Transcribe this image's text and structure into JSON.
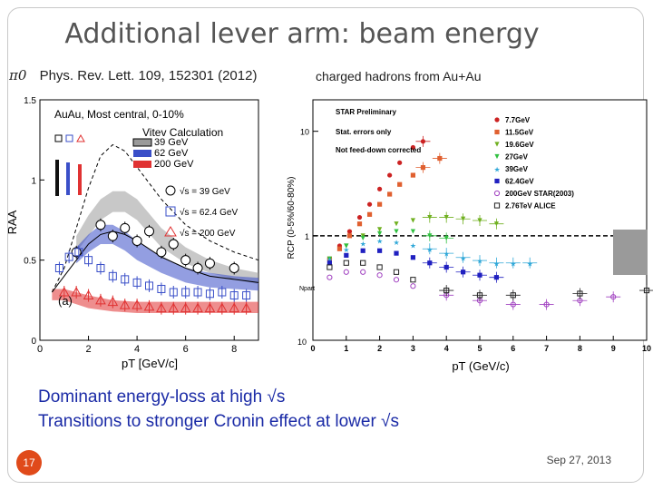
{
  "slide": {
    "title": "Additional lever arm: beam energy",
    "pi_label": "π0",
    "publication": "Phys. Rev. Lett. 109, 152301 (2012)",
    "hadrons_label": "charged hadrons from Au+Au",
    "bullets": [
      "Dominant energy-loss at high √s",
      "Transitions to stronger Cronin effect at lower √s"
    ],
    "slide_number": "17",
    "date": "Sep 27, 2013"
  },
  "colors": {
    "c39": "#9a9a9a",
    "c62": "#3a4fc8",
    "c200": "#e03232",
    "g77": "#cc2222",
    "g115": "#e06030",
    "g196": "#70b020",
    "g27": "#30c040",
    "g39": "#30a8d8",
    "g624": "#2020c0",
    "g200": "#a040c0",
    "g276": "#202020"
  },
  "chart_data": [
    {
      "type": "scatter",
      "title": "AuAu, Most central, 0-10%",
      "calc_label": "Vitev Calculation",
      "panel_label": "(a)",
      "xlabel": "pT [GeV/c]",
      "ylabel": "RAA",
      "xlim": [
        0,
        9
      ],
      "ylim": [
        0,
        1.5
      ],
      "x_ticks": [
        "0",
        "2",
        "4",
        "6",
        "8"
      ],
      "y_ticks": [
        "0",
        "0.5",
        "1",
        "1.5"
      ],
      "bands": [
        {
          "name": "39 GeV",
          "x": [
            1.5,
            2,
            2.5,
            3,
            3.5,
            4,
            5,
            6,
            7,
            8,
            9
          ],
          "lo": [
            0.55,
            0.65,
            0.75,
            0.8,
            0.8,
            0.75,
            0.58,
            0.48,
            0.42,
            0.38,
            0.35
          ],
          "hi": [
            0.65,
            0.78,
            0.88,
            0.93,
            0.93,
            0.88,
            0.7,
            0.58,
            0.5,
            0.45,
            0.42
          ]
        },
        {
          "name": "62 GeV",
          "x": [
            1.5,
            2,
            2.5,
            3,
            3.5,
            4,
            5,
            6,
            7,
            8,
            9
          ],
          "lo": [
            0.48,
            0.55,
            0.6,
            0.6,
            0.56,
            0.5,
            0.42,
            0.36,
            0.33,
            0.32,
            0.31
          ],
          "hi": [
            0.58,
            0.66,
            0.72,
            0.72,
            0.68,
            0.62,
            0.52,
            0.45,
            0.42,
            0.4,
            0.39
          ]
        },
        {
          "name": "200 GeV",
          "x": [
            0.5,
            1,
            2,
            3,
            4,
            5,
            6,
            7,
            8,
            9
          ],
          "lo": [
            0.25,
            0.25,
            0.2,
            0.18,
            0.17,
            0.17,
            0.17,
            0.17,
            0.17,
            0.17
          ],
          "hi": [
            0.32,
            0.32,
            0.28,
            0.25,
            0.24,
            0.24,
            0.24,
            0.24,
            0.24,
            0.24
          ]
        }
      ],
      "curves": [
        {
          "name": "dashed",
          "x": [
            0.5,
            1,
            1.5,
            2,
            2.5,
            3,
            3.5,
            4,
            5,
            6,
            7,
            8,
            9
          ],
          "y": [
            0.3,
            0.45,
            0.7,
            0.95,
            1.15,
            1.22,
            1.18,
            1.08,
            0.88,
            0.72,
            0.62,
            0.55,
            0.5
          ]
        },
        {
          "name": "solid",
          "x": [
            0.5,
            1,
            1.5,
            2,
            2.5,
            3,
            3.5,
            4,
            5,
            6,
            7,
            8,
            9
          ],
          "y": [
            0.3,
            0.4,
            0.5,
            0.6,
            0.66,
            0.68,
            0.66,
            0.62,
            0.52,
            0.45,
            0.4,
            0.38,
            0.36
          ]
        }
      ],
      "series": [
        {
          "name": "√s = 39 GeV",
          "x": [
            1.5,
            2.5,
            3,
            3.5,
            4,
            4.5,
            5,
            5.5,
            6,
            6.5,
            7,
            8
          ],
          "y": [
            0.55,
            0.72,
            0.65,
            0.7,
            0.62,
            0.68,
            0.55,
            0.6,
            0.5,
            0.45,
            0.48,
            0.45
          ]
        },
        {
          "name": "√s = 62.4 GeV",
          "x": [
            0.8,
            1.2,
            1.6,
            2,
            2.5,
            3,
            3.5,
            4,
            4.5,
            5,
            5.5,
            6,
            6.5,
            7,
            7.5,
            8,
            8.5
          ],
          "y": [
            0.45,
            0.52,
            0.55,
            0.5,
            0.45,
            0.4,
            0.38,
            0.36,
            0.34,
            0.32,
            0.3,
            0.3,
            0.3,
            0.29,
            0.3,
            0.28,
            0.28
          ]
        },
        {
          "name": "√s = 200 GeV",
          "x": [
            1,
            1.5,
            2,
            2.5,
            3,
            3.5,
            4,
            4.5,
            5,
            5.5,
            6,
            6.5,
            7,
            7.5,
            8,
            8.5
          ],
          "y": [
            0.3,
            0.3,
            0.28,
            0.25,
            0.24,
            0.22,
            0.22,
            0.21,
            0.2,
            0.2,
            0.2,
            0.2,
            0.2,
            0.2,
            0.2,
            0.2
          ]
        }
      ],
      "legend": [
        "39 GeV",
        "62 GeV",
        "200 GeV"
      ],
      "marker_legend": [
        "√s = 39 GeV",
        "√s = 62.4 GeV",
        "√s = 200 GeV"
      ]
    },
    {
      "type": "scatter",
      "title": "STAR Preliminary",
      "notes": [
        "Stat. errors only",
        "Not feed-down corrected"
      ],
      "xlabel": "pT (GeV/c)",
      "ylabel": "RCP (0-5%/60-80%)",
      "npart_label": "Npart",
      "xlim": [
        0,
        10
      ],
      "log_y": true,
      "ylim": [
        0.1,
        20
      ],
      "x_ticks": [
        "0",
        "1",
        "2",
        "3",
        "4",
        "5",
        "6",
        "7",
        "8",
        "9",
        "10"
      ],
      "y_ticks": [
        "10",
        "1"
      ],
      "y_tick_values": [
        10,
        1
      ],
      "bottom_label": "10",
      "reference_line": 1,
      "series": [
        {
          "name": "7.7GeV",
          "color_key": "g77",
          "marker": "circle",
          "x": [
            0.5,
            0.8,
            1.1,
            1.4,
            1.7,
            2.0,
            2.3,
            2.6,
            3.0,
            3.3
          ],
          "y": [
            0.6,
            0.8,
            1.1,
            1.5,
            2.0,
            2.8,
            3.8,
            5.0,
            7.0,
            8.0
          ]
        },
        {
          "name": "11.5GeV",
          "color_key": "g115",
          "marker": "square",
          "x": [
            0.5,
            0.8,
            1.1,
            1.4,
            1.7,
            2.0,
            2.3,
            2.6,
            3.0,
            3.3,
            3.8
          ],
          "y": [
            0.6,
            0.75,
            1.0,
            1.3,
            1.6,
            2.0,
            2.5,
            3.1,
            3.8,
            4.5,
            5.5
          ]
        },
        {
          "name": "19.6GeV",
          "color_key": "g196",
          "marker": "triangle-down",
          "x": [
            0.5,
            1.0,
            1.5,
            2.0,
            2.5,
            3.0,
            3.5,
            4.0,
            4.5,
            5.0,
            5.5
          ],
          "y": [
            0.6,
            0.8,
            1.0,
            1.15,
            1.3,
            1.4,
            1.5,
            1.5,
            1.45,
            1.4,
            1.3
          ]
        },
        {
          "name": "27GeV",
          "color_key": "g27",
          "marker": "triangle-down",
          "x": [
            0.5,
            1.0,
            1.5,
            2.0,
            2.5,
            3.0,
            3.5,
            4.0
          ],
          "y": [
            0.6,
            0.8,
            0.95,
            1.05,
            1.1,
            1.1,
            1.0,
            0.95
          ]
        },
        {
          "name": "39GeV",
          "color_key": "g39",
          "marker": "star",
          "x": [
            0.5,
            1.0,
            1.5,
            2.0,
            2.5,
            3.0,
            3.5,
            4.0,
            4.5,
            5.0,
            5.5,
            6.0,
            6.5
          ],
          "y": [
            0.6,
            0.75,
            0.85,
            0.9,
            0.88,
            0.82,
            0.75,
            0.68,
            0.62,
            0.58,
            0.55,
            0.55,
            0.55
          ]
        },
        {
          "name": "62.4GeV",
          "color_key": "g624",
          "marker": "square",
          "x": [
            0.5,
            1.0,
            1.5,
            2.0,
            2.5,
            3.0,
            3.5,
            4.0,
            4.5,
            5.0,
            5.5
          ],
          "y": [
            0.55,
            0.65,
            0.72,
            0.72,
            0.68,
            0.62,
            0.55,
            0.5,
            0.45,
            0.42,
            0.4
          ]
        },
        {
          "name": "200GeV STAR(2003)",
          "color_key": "g200",
          "marker": "open-circle",
          "x": [
            0.5,
            1.0,
            1.5,
            2.0,
            2.5,
            3.0,
            4.0,
            5.0,
            6.0,
            7.0,
            8.0,
            9.0
          ],
          "y": [
            0.4,
            0.45,
            0.45,
            0.42,
            0.38,
            0.33,
            0.27,
            0.24,
            0.22,
            0.22,
            0.24,
            0.26
          ]
        },
        {
          "name": "2.76TeV ALICE",
          "color_key": "g276",
          "marker": "open-square",
          "x": [
            0.5,
            1.0,
            1.5,
            2.0,
            2.5,
            3.0,
            4.0,
            5.0,
            6.0,
            8.0,
            10.0
          ],
          "y": [
            0.5,
            0.55,
            0.55,
            0.5,
            0.45,
            0.38,
            0.3,
            0.27,
            0.27,
            0.28,
            0.3
          ]
        }
      ]
    }
  ]
}
